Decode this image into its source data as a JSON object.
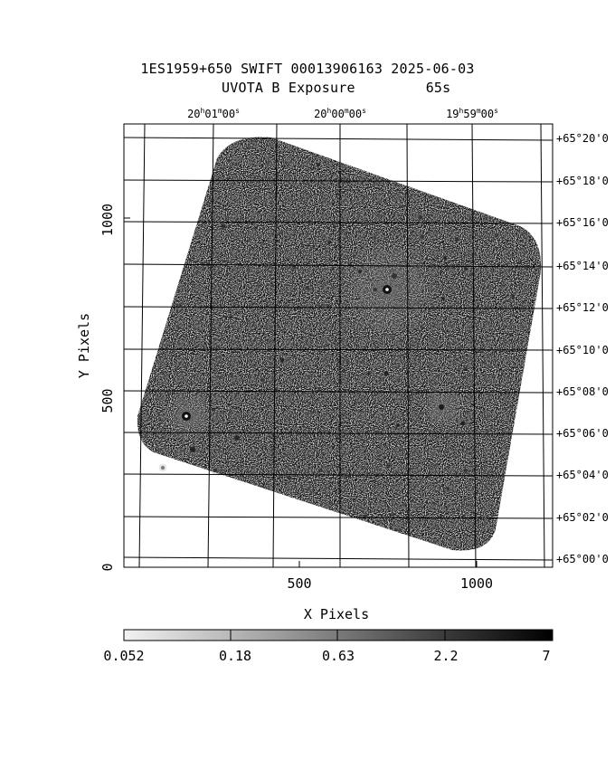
{
  "header": {
    "title_line1": "1ES1959+650 SWIFT 00013906163 2025-06-03",
    "title_line2": "UVOTA B Exposure",
    "exposure": "65s"
  },
  "axes": {
    "xlabel": "X Pixels",
    "ylabel": "Y Pixels",
    "x_ticks": [
      "500",
      "1000"
    ],
    "y_ticks": [
      "0",
      "500",
      "1000"
    ],
    "ra_ticks": [
      {
        "h": "20",
        "m": "01",
        "s": "00"
      },
      {
        "h": "20",
        "m": "00",
        "s": "00"
      },
      {
        "h": "19",
        "m": "59",
        "s": "00"
      }
    ],
    "dec_ticks": [
      "+65°20'0",
      "+65°18'0",
      "+65°16'0",
      "+65°14'0",
      "+65°12'0",
      "+65°10'0",
      "+65°08'0",
      "+65°06'0",
      "+65°04'0",
      "+65°02'0",
      "+65°00'0"
    ]
  },
  "colorbar": {
    "labels": [
      "0.052",
      "0.18",
      "0.63",
      "2.2",
      "7"
    ]
  }
}
